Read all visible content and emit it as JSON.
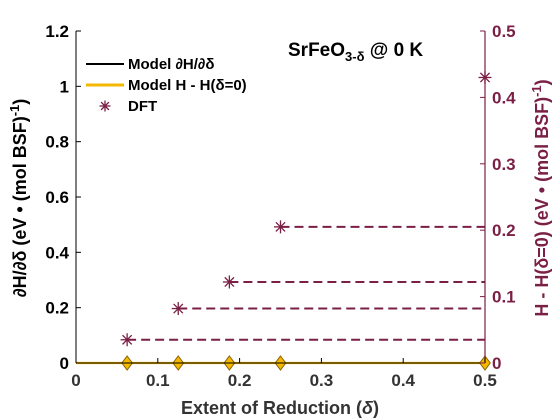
{
  "chart_data": {
    "type": "line",
    "xlabel_main": "Extent of Reduction (",
    "xlabel_symbol": "δ",
    "xlabel_close": ")",
    "ylabel_left": "∂H/∂δ (eV • (mol BSF)",
    "ylabel_left_sup": "-1",
    "ylabel_left_close": ")",
    "ylabel_right": "H - H(δ=0) (eV • (mol BSF)",
    "ylabel_right_sup": "-1",
    "ylabel_right_close": ")",
    "annotation_main": "SrFeO",
    "annotation_sub": "3-δ",
    "annotation_tail": " @ 0 K",
    "xlim": [
      0,
      0.5
    ],
    "ylim_left": [
      0,
      1.2
    ],
    "ylim_right": [
      0,
      0.5
    ],
    "x_ticks": [
      "0",
      "0.1",
      "0.2",
      "0.3",
      "0.4",
      "0.5"
    ],
    "y_left_ticks": [
      "0",
      "0.2",
      "0.4",
      "0.6",
      "0.8",
      "1",
      "1.2"
    ],
    "y_right_ticks": [
      "0",
      "0.1",
      "0.2",
      "0.3",
      "0.4",
      "0.5"
    ],
    "legend_position": "top-left",
    "legend": [
      {
        "label": "Model ∂H/∂δ",
        "style": "line",
        "color": "#000000"
      },
      {
        "label": "Model H - H(δ=0)",
        "style": "line",
        "color": "#f5b800"
      },
      {
        "label": "DFT",
        "style": "star",
        "color": "#7a1f45"
      }
    ],
    "series": [
      {
        "name": "Model ∂H/∂δ",
        "axis": "left",
        "color": "#000000",
        "x": [
          0,
          0.5
        ],
        "y": [
          0,
          0
        ]
      },
      {
        "name": "Model H - H(δ=0)",
        "axis": "right",
        "color": "#f5b800",
        "x": [
          0,
          0.0625,
          0.125,
          0.1875,
          0.25,
          0.5
        ],
        "y": [
          0,
          0,
          0,
          0,
          0,
          0
        ],
        "markers": [
          0.0625,
          0.125,
          0.1875,
          0.25,
          0.5
        ]
      },
      {
        "name": "DFT",
        "axis": "right",
        "color": "#7a1f45",
        "x": [
          0.0625,
          0.125,
          0.1875,
          0.25,
          0.5
        ],
        "y": [
          0.035,
          0.082,
          0.122,
          0.205,
          0.43
        ],
        "dashed_to_x": 0.5
      }
    ],
    "colors": {
      "axis": "#000000",
      "right_axis": "#7a1f45",
      "model_h": "#f5b800",
      "diamond_fill": "#f5b800",
      "diamond_edge": "#8a6200"
    }
  }
}
